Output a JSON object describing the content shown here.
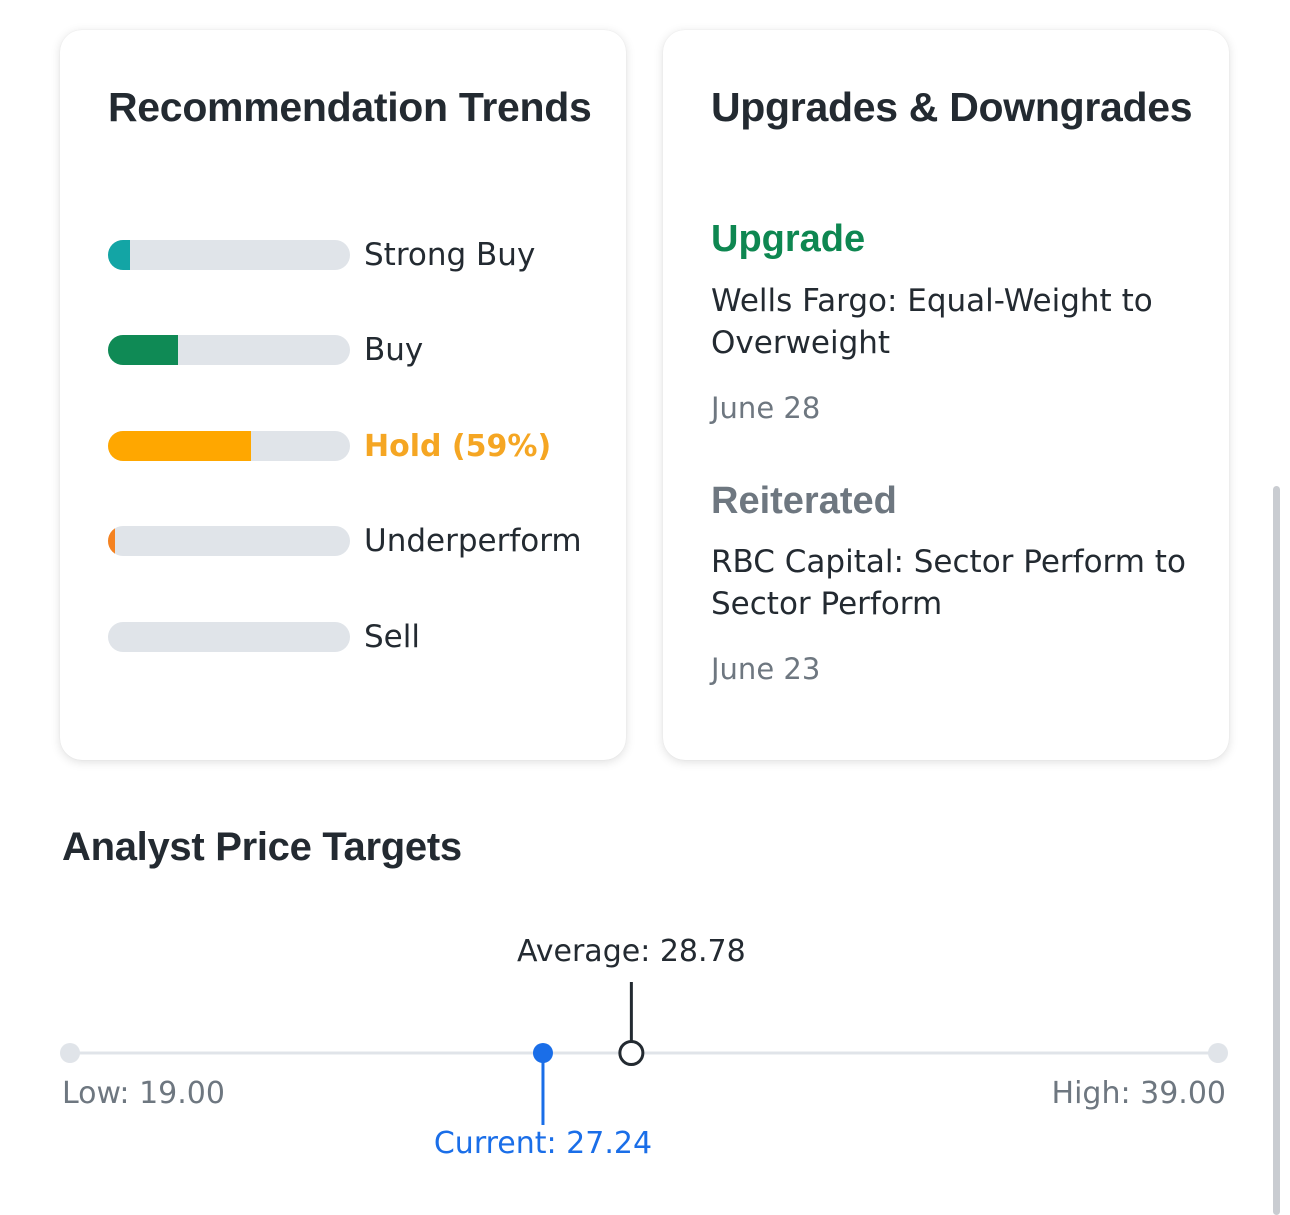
{
  "recommendation_trends": {
    "title": "Recommendation Trends",
    "items": [
      {
        "label": "Strong Buy",
        "fill": 0.09,
        "color": "#13a5a5",
        "highlight": false
      },
      {
        "label": "Buy",
        "fill": 0.29,
        "color": "#0f8a55",
        "highlight": false
      },
      {
        "label": "Hold (59%)",
        "fill": 0.59,
        "color": "#ffa700",
        "highlight": true
      },
      {
        "label": "Underperform",
        "fill": 0.03,
        "color": "#f58220",
        "highlight": false
      },
      {
        "label": "Sell",
        "fill": 0.0,
        "color": "#e0e4e9",
        "highlight": false
      }
    ]
  },
  "upgrades_downgrades": {
    "title": "Upgrades & Downgrades",
    "entries": [
      {
        "action": "Upgrade",
        "action_color": "#0e8751",
        "firm": "Wells Fargo: Equal-Weight to Overweight",
        "date": "June 28"
      },
      {
        "action": "Reiterated",
        "action_color": "#6e7780",
        "firm": "RBC Capital: Sector Perform to Sector Perform",
        "date": "June 23"
      }
    ]
  },
  "analyst_price_targets": {
    "title": "Analyst Price Targets",
    "low_label": "Low: 19.00",
    "high_label": "High: 39.00",
    "current_label": "Current: 27.24",
    "average_label": "Average: 28.78",
    "low": 19.0,
    "high": 39.0,
    "current": 27.24,
    "average": 28.78,
    "current_color": "#1a6ee8"
  }
}
